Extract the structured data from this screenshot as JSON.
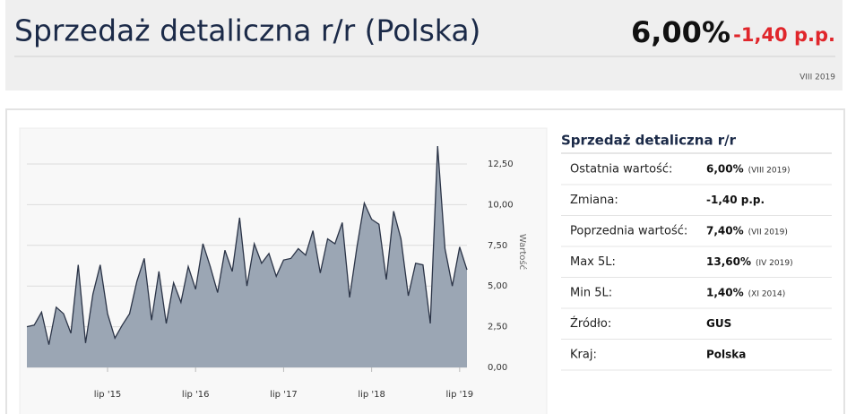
{
  "header": {
    "title": "Sprzedaż detaliczna r/r (Polska)",
    "value": "6,00%",
    "change": "-1,40 p.p.",
    "period": "VIII 2019"
  },
  "chart_data": {
    "type": "area",
    "ylabel": "Wartość",
    "color": "#9ba6b4",
    "line_color": "#2b3447",
    "grid": true,
    "x": [
      "2014-08",
      "2014-09",
      "2014-10",
      "2014-11",
      "2014-12",
      "2015-01",
      "2015-02",
      "2015-03",
      "2015-04",
      "2015-05",
      "2015-06",
      "2015-07",
      "2015-08",
      "2015-09",
      "2015-10",
      "2015-11",
      "2015-12",
      "2016-01",
      "2016-02",
      "2016-03",
      "2016-04",
      "2016-05",
      "2016-06",
      "2016-07",
      "2016-08",
      "2016-09",
      "2016-10",
      "2016-11",
      "2016-12",
      "2017-01",
      "2017-02",
      "2017-03",
      "2017-04",
      "2017-05",
      "2017-06",
      "2017-07",
      "2017-08",
      "2017-09",
      "2017-10",
      "2017-11",
      "2017-12",
      "2018-01",
      "2018-02",
      "2018-03",
      "2018-04",
      "2018-05",
      "2018-06",
      "2018-07",
      "2018-08",
      "2018-09",
      "2018-10",
      "2018-11",
      "2018-12",
      "2019-01",
      "2019-02",
      "2019-03",
      "2019-04",
      "2019-05",
      "2019-06",
      "2019-07",
      "2019-08"
    ],
    "values": [
      2.5,
      2.6,
      3.4,
      1.4,
      3.7,
      3.3,
      2.1,
      6.3,
      1.5,
      4.5,
      6.3,
      3.3,
      1.8,
      2.6,
      3.3,
      5.3,
      6.7,
      2.9,
      5.9,
      2.7,
      5.2,
      4.0,
      6.2,
      4.8,
      7.6,
      6.2,
      4.6,
      7.2,
      5.9,
      9.2,
      5.0,
      7.6,
      6.4,
      7.0,
      5.6,
      6.6,
      6.7,
      7.3,
      6.9,
      8.4,
      5.8,
      7.9,
      7.6,
      8.9,
      4.3,
      7.4,
      10.1,
      9.1,
      8.8,
      5.4,
      9.6,
      7.9,
      4.4,
      6.4,
      6.3,
      2.7,
      13.6,
      7.3,
      5.0,
      7.4,
      6.0
    ],
    "xlim": [
      "2014-08",
      "2019-08"
    ],
    "xticks": [
      {
        "value": "2015-07",
        "label": "lip '15"
      },
      {
        "value": "2016-07",
        "label": "lip '16"
      },
      {
        "value": "2017-07",
        "label": "lip '17"
      },
      {
        "value": "2018-07",
        "label": "lip '18"
      },
      {
        "value": "2019-07",
        "label": "lip '19"
      }
    ],
    "ylim": [
      0,
      13.8
    ],
    "yticks": [
      {
        "value": 0,
        "label": "0,00"
      },
      {
        "value": 2.5,
        "label": "2,50"
      },
      {
        "value": 5,
        "label": "5,00"
      },
      {
        "value": 7.5,
        "label": "7,50"
      },
      {
        "value": 10,
        "label": "10,00"
      },
      {
        "value": 12.5,
        "label": "12,50"
      }
    ]
  },
  "table": {
    "title": "Sprzedaż detaliczna r/r",
    "rows": [
      {
        "label": "Ostatnia wartość:",
        "value": "6,00%",
        "note": "(VIII 2019)"
      },
      {
        "label": "Zmiana:",
        "value": "-1,40 p.p."
      },
      {
        "label": "Poprzednia wartość:",
        "value": "7,40%",
        "note": "(VII 2019)"
      },
      {
        "label": "Max 5L:",
        "value": "13,60%",
        "note": "(IV 2019)"
      },
      {
        "label": "Min 5L:",
        "value": "1,40%",
        "note": "(XI 2014)"
      },
      {
        "label": "Źródło:",
        "value": "GUS"
      },
      {
        "label": "Kraj:",
        "value": "Polska"
      }
    ]
  }
}
